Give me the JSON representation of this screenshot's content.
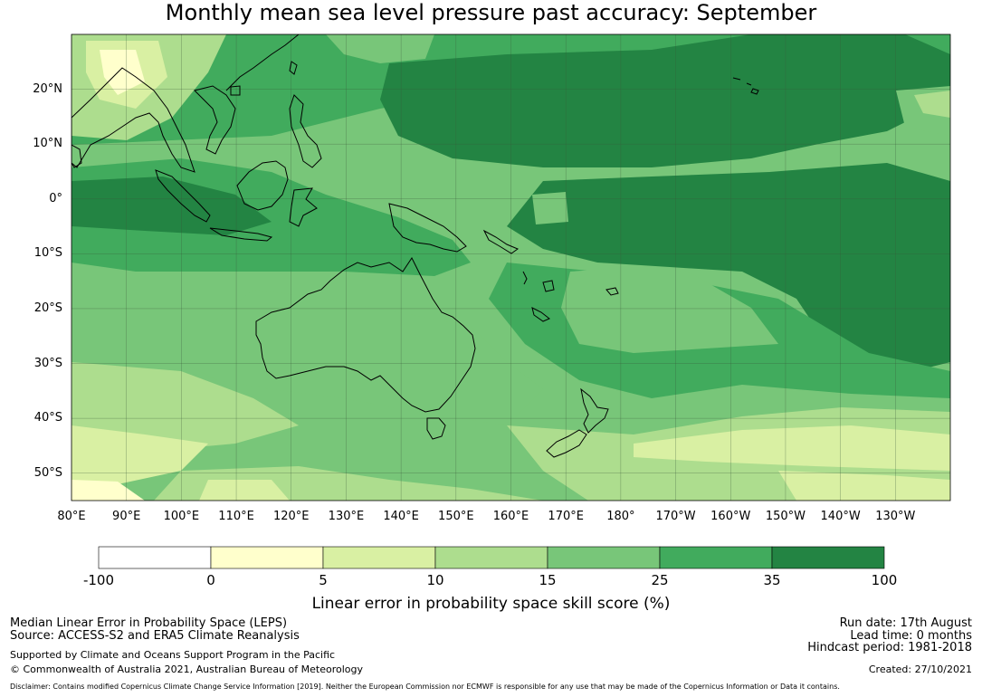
{
  "title": "Monthly mean sea level pressure past accuracy: September",
  "map": {
    "lat_labels": [
      "20°N",
      "10°N",
      "0°",
      "10°S",
      "20°S",
      "30°S",
      "40°S",
      "50°S"
    ],
    "lon_labels": [
      "80°E",
      "90°E",
      "100°E",
      "110°E",
      "120°E",
      "130°E",
      "140°E",
      "150°E",
      "160°E",
      "170°E",
      "180°",
      "170°W",
      "160°W",
      "150°W",
      "140°W",
      "130°W"
    ],
    "extent": {
      "lon_min": 80,
      "lon_max": 240,
      "lat_min": -55,
      "lat_max": 30
    }
  },
  "colorbar": {
    "ticks": [
      "-100",
      "0",
      "5",
      "10",
      "15",
      "25",
      "35",
      "100"
    ],
    "colors": [
      "#ffffff",
      "#ffffcc",
      "#d9f0a3",
      "#addd8e",
      "#78c679",
      "#41ab5d",
      "#238443"
    ],
    "label": "Linear error in probability space skill score (%)"
  },
  "footer": {
    "left_line1": "Median Linear Error in Probability Space (LEPS)",
    "left_line2": "Source: ACCESS-S2 and ERA5 Climate Reanalysis",
    "left_line3": "Supported by Climate and Oceans Support Program in the Pacific",
    "left_line4": "© Commonwealth of Australia 2021, Australian Bureau of Meteorology",
    "right_line1": "Run date: 17th August",
    "right_line2": "Lead time: 0 months",
    "right_line3": "Hindcast period: 1981-2018",
    "right_line4": "Created: 27/10/2021",
    "disclaimer": "Disclaimer: Contains modified Copernicus Climate Change Service Information [2019]. Neither the European Commission nor ECMWF is responsible for any use that may be made of the Copernicus Information or Data it contains."
  }
}
